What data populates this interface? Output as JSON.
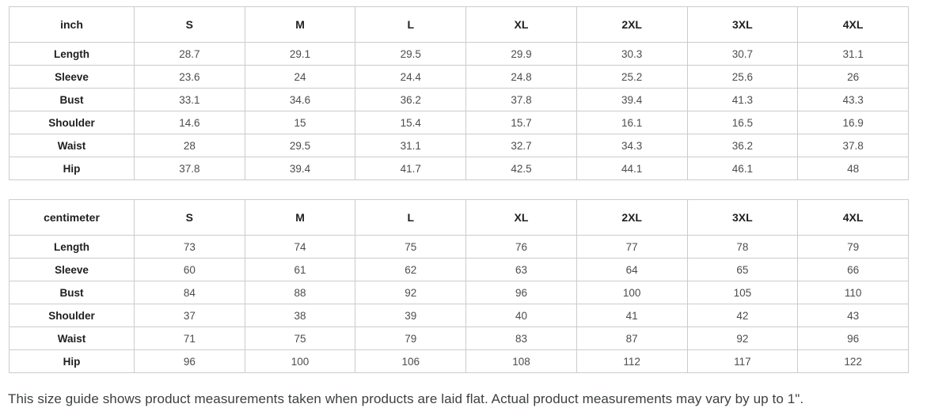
{
  "colors": {
    "table_border": "#cccccc",
    "header_text": "#1f1f1f",
    "value_text": "#4d4d4d",
    "footer_text": "#3c4043",
    "background": "#ffffff"
  },
  "size_tables": [
    {
      "unit_label": "inch",
      "columns": [
        "S",
        "M",
        "L",
        "XL",
        "2XL",
        "3XL",
        "4XL"
      ],
      "rows": [
        {
          "label": "Length",
          "values": [
            "28.7",
            "29.1",
            "29.5",
            "29.9",
            "30.3",
            "30.7",
            "31.1"
          ]
        },
        {
          "label": "Sleeve",
          "values": [
            "23.6",
            "24",
            "24.4",
            "24.8",
            "25.2",
            "25.6",
            "26"
          ]
        },
        {
          "label": "Bust",
          "values": [
            "33.1",
            "34.6",
            "36.2",
            "37.8",
            "39.4",
            "41.3",
            "43.3"
          ]
        },
        {
          "label": "Shoulder",
          "values": [
            "14.6",
            "15",
            "15.4",
            "15.7",
            "16.1",
            "16.5",
            "16.9"
          ]
        },
        {
          "label": "Waist",
          "values": [
            "28",
            "29.5",
            "31.1",
            "32.7",
            "34.3",
            "36.2",
            "37.8"
          ]
        },
        {
          "label": "Hip",
          "values": [
            "37.8",
            "39.4",
            "41.7",
            "42.5",
            "44.1",
            "46.1",
            "48"
          ]
        }
      ]
    },
    {
      "unit_label": "centimeter",
      "columns": [
        "S",
        "M",
        "L",
        "XL",
        "2XL",
        "3XL",
        "4XL"
      ],
      "rows": [
        {
          "label": "Length",
          "values": [
            "73",
            "74",
            "75",
            "76",
            "77",
            "78",
            "79"
          ]
        },
        {
          "label": "Sleeve",
          "values": [
            "60",
            "61",
            "62",
            "63",
            "64",
            "65",
            "66"
          ]
        },
        {
          "label": "Bust",
          "values": [
            "84",
            "88",
            "92",
            "96",
            "100",
            "105",
            "110"
          ]
        },
        {
          "label": "Shoulder",
          "values": [
            "37",
            "38",
            "39",
            "40",
            "41",
            "42",
            "43"
          ]
        },
        {
          "label": "Waist",
          "values": [
            "71",
            "75",
            "79",
            "83",
            "87",
            "92",
            "96"
          ]
        },
        {
          "label": "Hip",
          "values": [
            "96",
            "100",
            "106",
            "108",
            "112",
            "117",
            "122"
          ]
        }
      ]
    }
  ],
  "footer_note": "This size guide shows product measurements taken when products are laid flat. Actual product measurements may vary by up to 1\"."
}
